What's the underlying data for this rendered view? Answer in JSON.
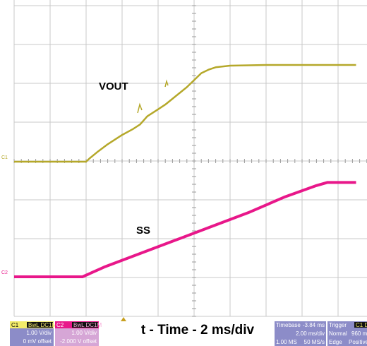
{
  "chart_data": {
    "type": "line",
    "xlabel": "t - Time - 2 ms/div",
    "x_unit": "div",
    "xlim": [
      0,
      9.5
    ],
    "grid": true,
    "series": [
      {
        "name": "VOUT",
        "channel": "C1",
        "color": "#b5a82a",
        "marker_label": "C1",
        "y_unit": "div",
        "x": [
          0,
          2.0,
          2.1,
          2.3,
          2.6,
          3.0,
          3.3,
          3.4,
          3.5,
          3.7,
          4.0,
          4.2,
          4.4,
          4.6,
          4.8,
          5.0,
          5.2,
          5.4,
          5.6,
          6.0,
          7.0,
          8.0,
          9.5
        ],
        "values": [
          0,
          0,
          0.15,
          0.4,
          0.75,
          1.15,
          1.4,
          1.5,
          1.6,
          1.95,
          2.25,
          2.45,
          2.7,
          2.95,
          3.2,
          3.5,
          3.8,
          3.95,
          4.05,
          4.12,
          4.15,
          4.15,
          4.15
        ]
      },
      {
        "name": "SS",
        "channel": "C2",
        "color": "#e8178a",
        "marker_label": "C2",
        "y_unit": "div",
        "x": [
          0,
          1.9,
          2.5,
          3.5,
          4.5,
          5.5,
          6.5,
          7.5,
          8.4,
          8.7,
          9.5
        ],
        "values": [
          0,
          0,
          0.25,
          0.6,
          0.95,
          1.3,
          1.65,
          2.05,
          2.35,
          2.43,
          2.43
        ]
      }
    ],
    "annotations": [
      {
        "text": "VOUT",
        "series": "VOUT"
      },
      {
        "text": "SS",
        "series": "SS"
      }
    ]
  },
  "footer": {
    "ch1": {
      "badge": "C1",
      "coupling": "BwL DC1M",
      "scale": "1.00 V/div",
      "offset": "0 mV offset"
    },
    "ch2": {
      "badge": "C2",
      "coupling": "BwL DC1M",
      "scale": "1.00 V/div",
      "offset": "-2.000 V offset"
    },
    "caption": "t - Time - 2 ms/div",
    "timebase": {
      "label": "Timebase",
      "position": "-3.84 ms",
      "scale": "2.00 ms/div",
      "samples": "1.00 MS",
      "rate": "50 MS/s"
    },
    "trigger": {
      "label": "Trigger",
      "badge": "C1 DC",
      "mode": "Normal",
      "level": "960 mV",
      "type": "Edge",
      "slope": "Positive"
    }
  },
  "colors": {
    "grid": "#c9c9c9",
    "vout_trace": "#b5a82a",
    "ss_trace": "#e8178a",
    "ch1_panel": "#8c8cc8",
    "ch2_panel": "#d6a6d6",
    "timebase_panel": "#8c8cc8"
  }
}
